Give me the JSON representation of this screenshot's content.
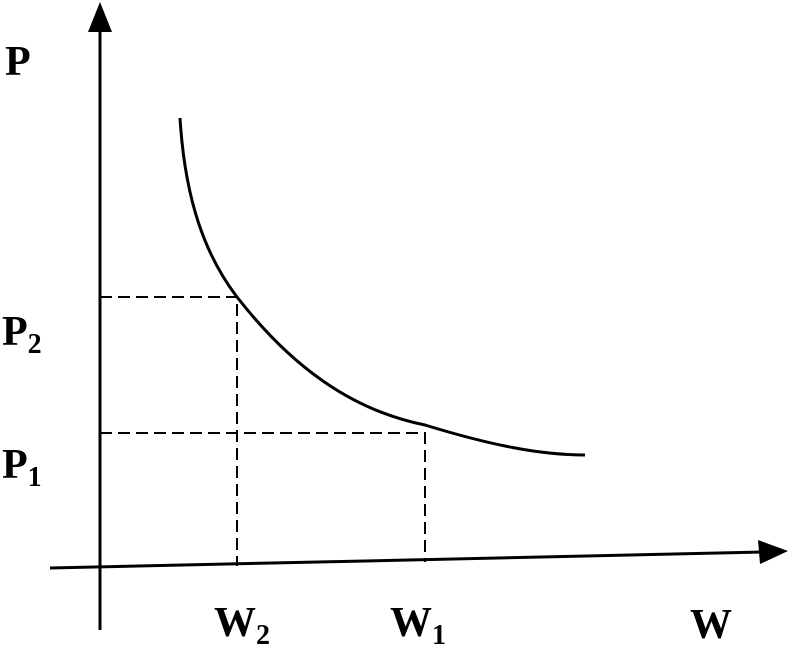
{
  "axes": {
    "y_label": "P",
    "x_label": "W"
  },
  "points": [
    {
      "p": {
        "main": "P",
        "sub": "2"
      },
      "w": {
        "main": "W",
        "sub": "2"
      }
    },
    {
      "p": {
        "main": "P",
        "sub": "1"
      },
      "w": {
        "main": "W",
        "sub": "1"
      }
    }
  ]
}
